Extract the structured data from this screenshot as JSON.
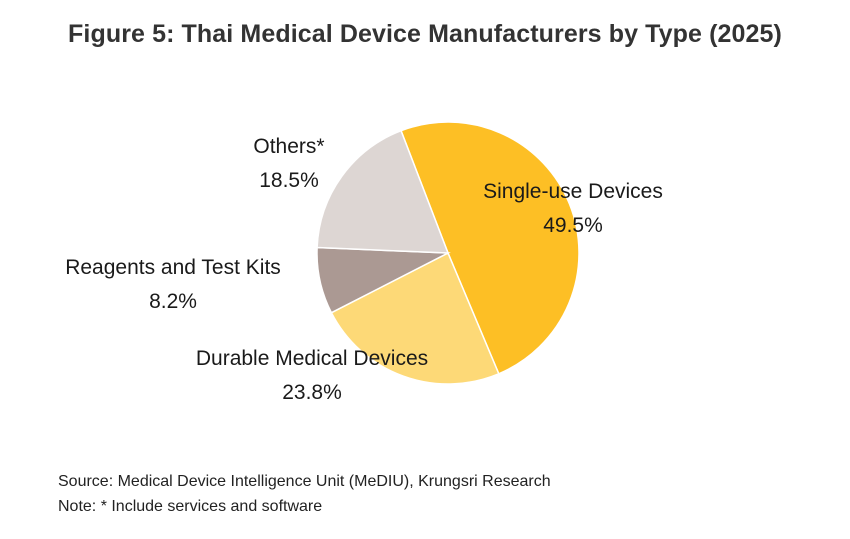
{
  "title": "Figure 5: Thai Medical Device Manufacturers by Type (2025)",
  "chart_data": {
    "type": "pie",
    "start_angle_deg": -21,
    "direction": "clockwise",
    "slices": [
      {
        "label": "Single-use Devices",
        "value": 49.5,
        "value_label": "49.5%",
        "color": "#FDBF25"
      },
      {
        "label": "Durable Medical Devices",
        "value": 23.8,
        "value_label": "23.8%",
        "color": "#FDD977"
      },
      {
        "label": "Reagents and Test Kits",
        "value": 8.2,
        "value_label": "8.2%",
        "color": "#AB9993"
      },
      {
        "label": "Others*",
        "value": 18.5,
        "value_label": "18.5%",
        "color": "#DDD6D3"
      }
    ]
  },
  "footer": {
    "source": "Source: Medical Device Intelligence Unit  (MeDIU), Krungsri Research",
    "note": "Note: * Include services and software"
  }
}
